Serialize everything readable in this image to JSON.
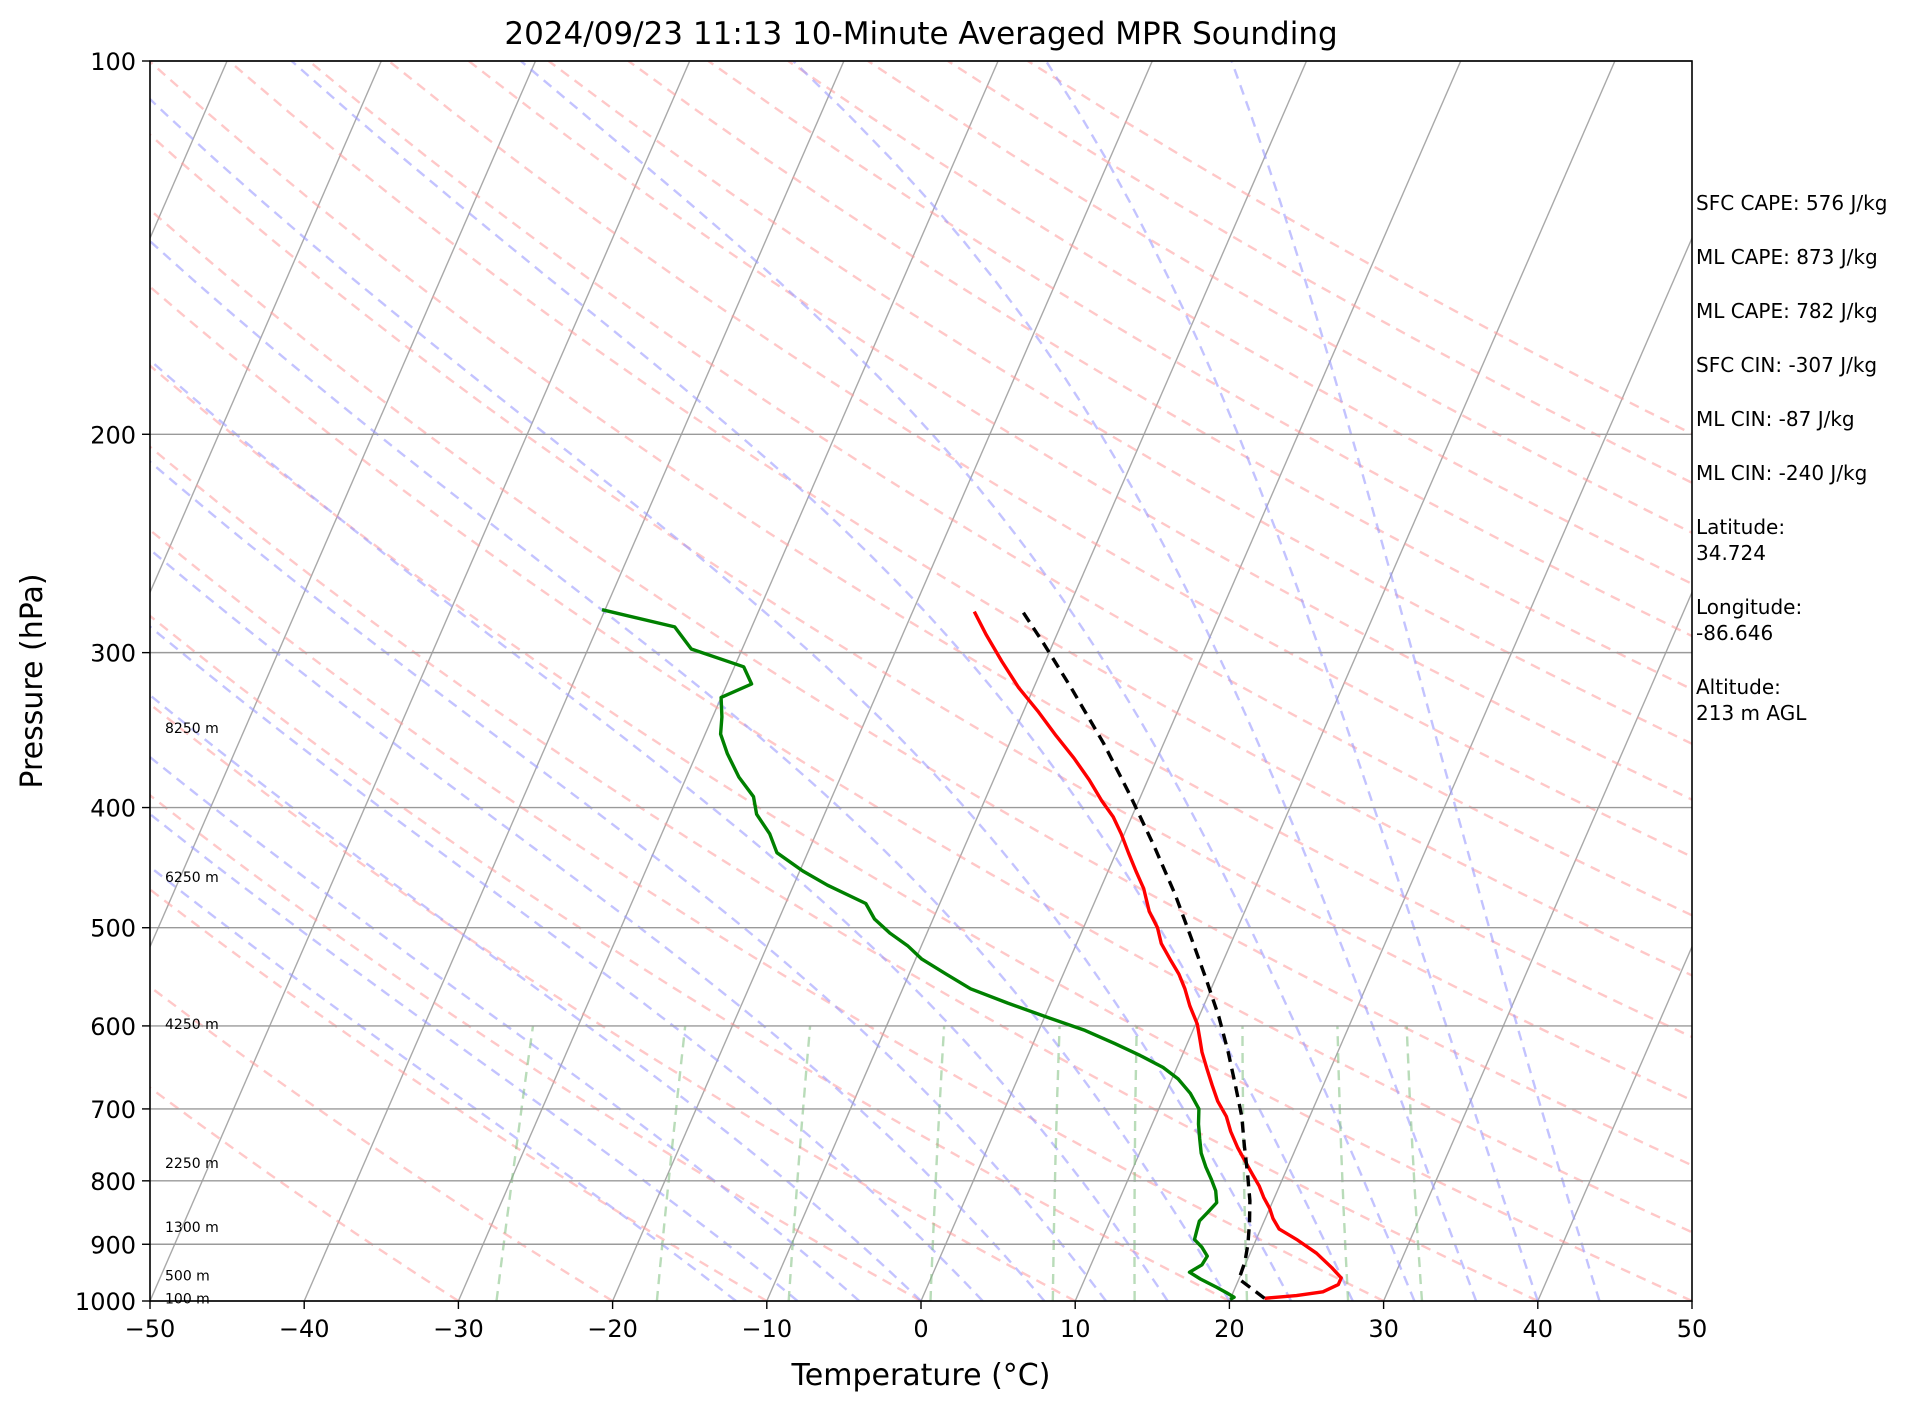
{
  "chart_data": {
    "type": "line",
    "title": "2024/09/23 11:13 10-Minute Averaged MPR Sounding",
    "xlabel": "Temperature (°C)",
    "ylabel": "Pressure (hPa)",
    "xlim": [
      -50,
      50
    ],
    "ylim": [
      1000,
      100
    ],
    "y_scale": "log",
    "x_ticks": [
      -50,
      -40,
      -30,
      -20,
      -10,
      0,
      10,
      20,
      30,
      40,
      50
    ],
    "x_tick_labels": [
      "−50",
      "−40",
      "−30",
      "−20",
      "−10",
      "0",
      "10",
      "20",
      "30",
      "40",
      "50"
    ],
    "y_ticks": [
      1000,
      900,
      800,
      700,
      600,
      500,
      400,
      300,
      200,
      100
    ],
    "y_tick_labels": [
      "1000",
      "900",
      "800",
      "700",
      "600",
      "500",
      "400",
      "300",
      "200",
      "100"
    ],
    "grid": true,
    "skew_t": true,
    "height_labels": [
      {
        "pressure": 345,
        "label": "8250 m"
      },
      {
        "pressure": 455,
        "label": "6250 m"
      },
      {
        "pressure": 598,
        "label": "4250 m"
      },
      {
        "pressure": 774,
        "label": "2250 m"
      },
      {
        "pressure": 872,
        "label": "1300 m"
      },
      {
        "pressure": 954,
        "label": "500 m"
      },
      {
        "pressure": 995,
        "label": "100 m"
      }
    ],
    "series": [
      {
        "color": "#ff0000",
        "style": "solid",
        "points": [
          [
            995,
            22.2
          ],
          [
            990,
            24.2
          ],
          [
            983,
            25.8
          ],
          [
            970,
            26.6
          ],
          [
            958,
            26.6
          ],
          [
            940,
            25.7
          ],
          [
            915,
            24.3
          ],
          [
            893,
            22.7
          ],
          [
            875,
            21.2
          ],
          [
            858,
            20.5
          ],
          [
            842,
            20.0
          ],
          [
            825,
            19.3
          ],
          [
            808,
            18.7
          ],
          [
            790,
            17.9
          ],
          [
            772,
            17.1
          ],
          [
            752,
            16.2
          ],
          [
            730,
            15.3
          ],
          [
            710,
            14.6
          ],
          [
            690,
            13.6
          ],
          [
            670,
            12.8
          ],
          [
            650,
            12.0
          ],
          [
            630,
            11.2
          ],
          [
            615,
            10.7
          ],
          [
            598,
            10.1
          ],
          [
            578,
            9.1
          ],
          [
            560,
            8.3
          ],
          [
            545,
            7.5
          ],
          [
            530,
            6.5
          ],
          [
            515,
            5.5
          ],
          [
            500,
            4.8
          ],
          [
            485,
            3.8
          ],
          [
            465,
            2.8
          ],
          [
            450,
            1.8
          ],
          [
            435,
            0.8
          ],
          [
            420,
            -0.2
          ],
          [
            407,
            -1.2
          ],
          [
            395,
            -2.4
          ],
          [
            380,
            -3.8
          ],
          [
            365,
            -5.4
          ],
          [
            350,
            -7.2
          ],
          [
            335,
            -9.0
          ],
          [
            320,
            -11.0
          ],
          [
            305,
            -12.8
          ],
          [
            290,
            -14.6
          ],
          [
            278,
            -16.0
          ]
        ]
      },
      {
        "color": "#008000",
        "style": "solid",
        "points": [
          [
            997,
            20.0
          ],
          [
            993,
            20.2
          ],
          [
            985,
            19.6
          ],
          [
            975,
            18.8
          ],
          [
            960,
            17.5
          ],
          [
            948,
            16.6
          ],
          [
            935,
            17.2
          ],
          [
            920,
            17.3
          ],
          [
            905,
            16.7
          ],
          [
            892,
            16.0
          ],
          [
            878,
            15.9
          ],
          [
            862,
            15.8
          ],
          [
            848,
            16.1
          ],
          [
            833,
            16.4
          ],
          [
            815,
            16.0
          ],
          [
            798,
            15.4
          ],
          [
            780,
            14.7
          ],
          [
            760,
            14.0
          ],
          [
            740,
            13.5
          ],
          [
            720,
            13.0
          ],
          [
            700,
            12.6
          ],
          [
            680,
            11.6
          ],
          [
            662,
            10.4
          ],
          [
            648,
            9.1
          ],
          [
            634,
            7.3
          ],
          [
            620,
            5.3
          ],
          [
            605,
            3.0
          ],
          [
            590,
            0.1
          ],
          [
            575,
            -2.8
          ],
          [
            560,
            -5.6
          ],
          [
            545,
            -7.6
          ],
          [
            530,
            -9.6
          ],
          [
            517,
            -10.9
          ],
          [
            505,
            -12.4
          ],
          [
            492,
            -13.8
          ],
          [
            478,
            -14.8
          ],
          [
            462,
            -17.8
          ],
          [
            450,
            -19.8
          ],
          [
            435,
            -22.0
          ],
          [
            420,
            -23.0
          ],
          [
            405,
            -24.4
          ],
          [
            392,
            -25.1
          ],
          [
            378,
            -26.6
          ],
          [
            362,
            -28.0
          ],
          [
            349,
            -29.0
          ],
          [
            338,
            -29.4
          ],
          [
            326,
            -30.0
          ],
          [
            318,
            -28.4
          ],
          [
            308,
            -29.4
          ],
          [
            298,
            -33.3
          ],
          [
            286,
            -35.0
          ],
          [
            277,
            -40.2
          ]
        ]
      },
      {
        "color": "#000000",
        "style": "dashed",
        "points": [
          [
            995,
            22.2
          ],
          [
            960,
            20.0
          ],
          [
            930,
            19.9
          ],
          [
            900,
            19.6
          ],
          [
            865,
            19.1
          ],
          [
            830,
            18.5
          ],
          [
            790,
            17.6
          ],
          [
            750,
            16.6
          ],
          [
            710,
            15.6
          ],
          [
            670,
            14.3
          ],
          [
            630,
            12.9
          ],
          [
            590,
            11.3
          ],
          [
            550,
            9.4
          ],
          [
            510,
            7.3
          ],
          [
            470,
            5.0
          ],
          [
            430,
            2.3
          ],
          [
            390,
            -0.8
          ],
          [
            355,
            -3.9
          ],
          [
            320,
            -7.6
          ],
          [
            295,
            -10.6
          ],
          [
            277,
            -13.0
          ]
        ]
      }
    ]
  },
  "info": {
    "sfc_cape": "SFC CAPE: 576 J/kg",
    "ml_cape_1": "ML CAPE: 873 J/kg",
    "ml_cape_2": "ML CAPE: 782 J/kg",
    "sfc_cin": "SFC CIN: -307 J/kg",
    "ml_cin_1": "ML CIN: -87 J/kg",
    "ml_cin_2": "ML CIN: -240 J/kg",
    "latitude_label": "Latitude:",
    "latitude_value": "34.724",
    "longitude_label": "Longitude:",
    "longitude_value": "-86.646",
    "altitude_label": "Altitude:",
    "altitude_value": "213 m AGL"
  }
}
